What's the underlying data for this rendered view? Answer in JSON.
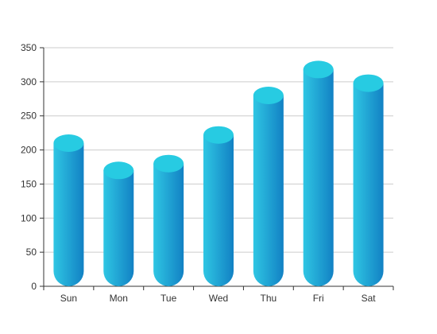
{
  "chart_data": {
    "type": "bar",
    "categories": [
      "Sun",
      "Mon",
      "Tue",
      "Wed",
      "Thu",
      "Fri",
      "Sat"
    ],
    "values": [
      210,
      170,
      180,
      222,
      280,
      318,
      298
    ],
    "ylim": [
      0,
      350
    ],
    "yticks": [
      0,
      50,
      100,
      150,
      200,
      250,
      300,
      350
    ],
    "grid": true,
    "legend": "none",
    "colors": {
      "bar_left": "#2fc6e3",
      "bar_right": "#1281c4",
      "bar_top": "#27cbe2",
      "grid": "#cccccc",
      "axis": "#333333"
    }
  }
}
